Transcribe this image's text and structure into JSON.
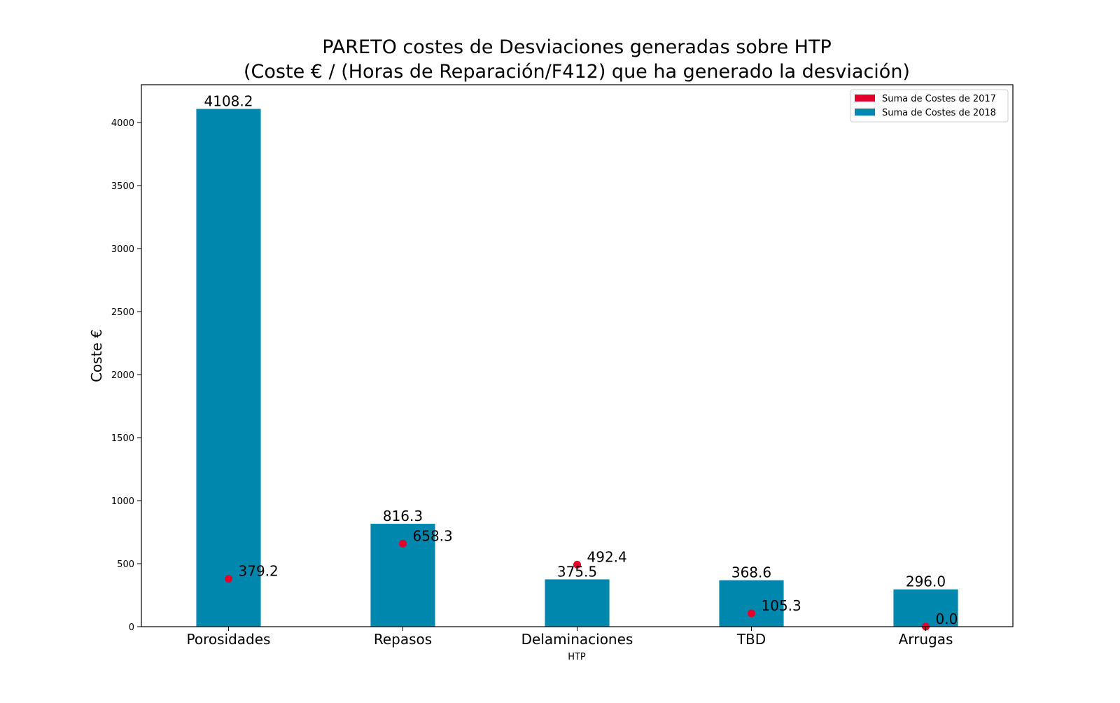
{
  "chart_data": {
    "type": "bar",
    "title_line1": "PARETO costes de Desviaciones  generadas  sobre HTP",
    "title_line2": "(Coste € / (Horas de Reparación/F412) que ha generado la desviación)",
    "xlabel": "HTP",
    "ylabel": "Coste €",
    "categories": [
      "Porosidades",
      "Repasos",
      "Delaminaciones",
      "TBD",
      "Arrugas"
    ],
    "series": [
      {
        "name": "Suma de Costes de 2018",
        "mark": "bar",
        "color": "#0087ad",
        "values": [
          4108.2,
          816.3,
          375.5,
          368.6,
          296.0
        ],
        "labels": [
          "4108.2",
          "816.3",
          "375.5",
          "368.6",
          "296.0"
        ]
      },
      {
        "name": "Suma de Costes de 2017",
        "mark": "point",
        "color": "#e3002b",
        "values": [
          379.2,
          658.3,
          492.4,
          105.3,
          0.0
        ],
        "labels": [
          "379.2",
          "658.3",
          "492.4",
          "105.3",
          "0.0"
        ]
      }
    ],
    "legend_order": [
      "Suma de Costes de 2017",
      "Suma de Costes de 2018"
    ],
    "legend_position": "top-right",
    "ylim": [
      0,
      4300
    ],
    "yticks": [
      0,
      500,
      1000,
      1500,
      2000,
      2500,
      3000,
      3500,
      4000
    ],
    "grid": false
  }
}
